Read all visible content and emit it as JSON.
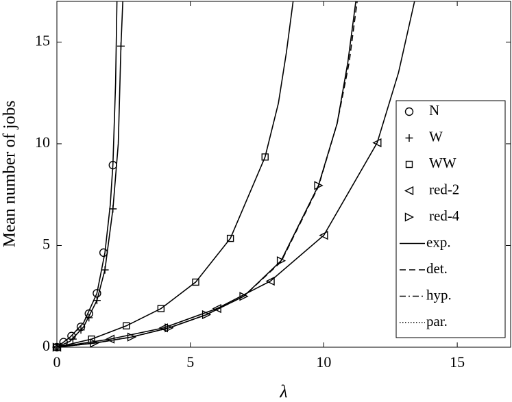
{
  "chart_data": {
    "type": "line",
    "xlabel": "λ",
    "ylabel": "Mean number of jobs",
    "xlim": [
      0,
      17
    ],
    "ylim": [
      0,
      17
    ],
    "xticks": [
      0,
      5,
      10,
      15
    ],
    "yticks": [
      0,
      5,
      10,
      15
    ],
    "grid": false,
    "legend": "east",
    "color": "#000000",
    "series": [
      {
        "name": "N",
        "marker": "circle",
        "x": [
          0,
          0.25,
          0.55,
          0.9,
          1.2,
          1.5,
          1.75,
          2.1
        ],
        "values": [
          0,
          0.25,
          0.55,
          1.0,
          1.65,
          2.65,
          4.65,
          8.95
        ]
      },
      {
        "name": "W",
        "marker": "plus",
        "x": [
          0,
          0.6,
          0.9,
          1.2,
          1.5,
          1.8,
          2.1,
          2.4
        ],
        "values": [
          0,
          0.4,
          0.85,
          1.45,
          2.3,
          3.8,
          6.8,
          14.8
        ]
      },
      {
        "name": "WW",
        "marker": "square",
        "x": [
          0,
          1.3,
          2.6,
          3.9,
          5.2,
          6.5,
          7.8
        ],
        "values": [
          0,
          0.4,
          1.05,
          1.9,
          3.2,
          5.35,
          9.35
        ]
      },
      {
        "name": "red-2",
        "marker": "triangle-left",
        "x": [
          0,
          2,
          4,
          6,
          8,
          10,
          12
        ],
        "values": [
          0,
          0.4,
          0.95,
          1.9,
          3.25,
          5.5,
          10.05
        ]
      },
      {
        "name": "red-4",
        "marker": "triangle-right",
        "x": [
          0,
          1.4,
          2.8,
          4.2,
          5.6,
          7,
          8.4,
          9.8
        ],
        "values": [
          0,
          0.2,
          0.5,
          0.95,
          1.6,
          2.5,
          4.25,
          7.95
        ]
      }
    ],
    "line_styles": [
      {
        "name": "exp.",
        "dash": "solid"
      },
      {
        "name": "det.",
        "dash": "dashed"
      },
      {
        "name": "hyp.",
        "dash": "dashdot"
      },
      {
        "name": "par.",
        "dash": "dotted"
      }
    ],
    "curves": [
      {
        "dash": "solid",
        "x": [
          0,
          0.5,
          1,
          1.5,
          1.8,
          2,
          2.1,
          2.2,
          2.25
        ],
        "values": [
          0,
          0.5,
          1.2,
          2.65,
          4.65,
          7,
          9,
          13,
          17
        ]
      },
      {
        "dash": "solid",
        "x": [
          0,
          0.5,
          1,
          1.5,
          1.8,
          2.1,
          2.3,
          2.4,
          2.47
        ],
        "values": [
          0,
          0.3,
          1,
          2.3,
          3.8,
          6.8,
          10,
          14.8,
          17
        ]
      },
      {
        "dash": "solid",
        "x": [
          0,
          1.3,
          2.6,
          3.9,
          5.2,
          6.5,
          7.8,
          8.3,
          8.6,
          8.85
        ],
        "values": [
          0,
          0.4,
          1.05,
          1.9,
          3.2,
          5.35,
          9.35,
          12,
          14.5,
          17
        ]
      },
      {
        "dash": "solid",
        "x": [
          0,
          1.4,
          2.8,
          4.2,
          5.6,
          7,
          8.4,
          9.8,
          10.5,
          10.9,
          11.2
        ],
        "values": [
          0,
          0.2,
          0.5,
          0.95,
          1.6,
          2.5,
          4.25,
          7.95,
          11,
          14,
          17
        ]
      },
      {
        "dash": "dashed",
        "x": [
          0,
          1.4,
          2.8,
          4.2,
          5.6,
          7,
          8.4,
          9.8,
          10.5,
          10.95,
          11.25
        ],
        "values": [
          0,
          0.2,
          0.5,
          0.95,
          1.6,
          2.5,
          4.2,
          7.9,
          11,
          14,
          17
        ]
      },
      {
        "dash": "solid",
        "x": [
          0,
          2,
          4,
          6,
          8,
          10,
          12,
          12.8,
          13.4
        ],
        "values": [
          0,
          0.4,
          0.95,
          1.9,
          3.25,
          5.5,
          10.05,
          13.5,
          17
        ]
      }
    ]
  }
}
